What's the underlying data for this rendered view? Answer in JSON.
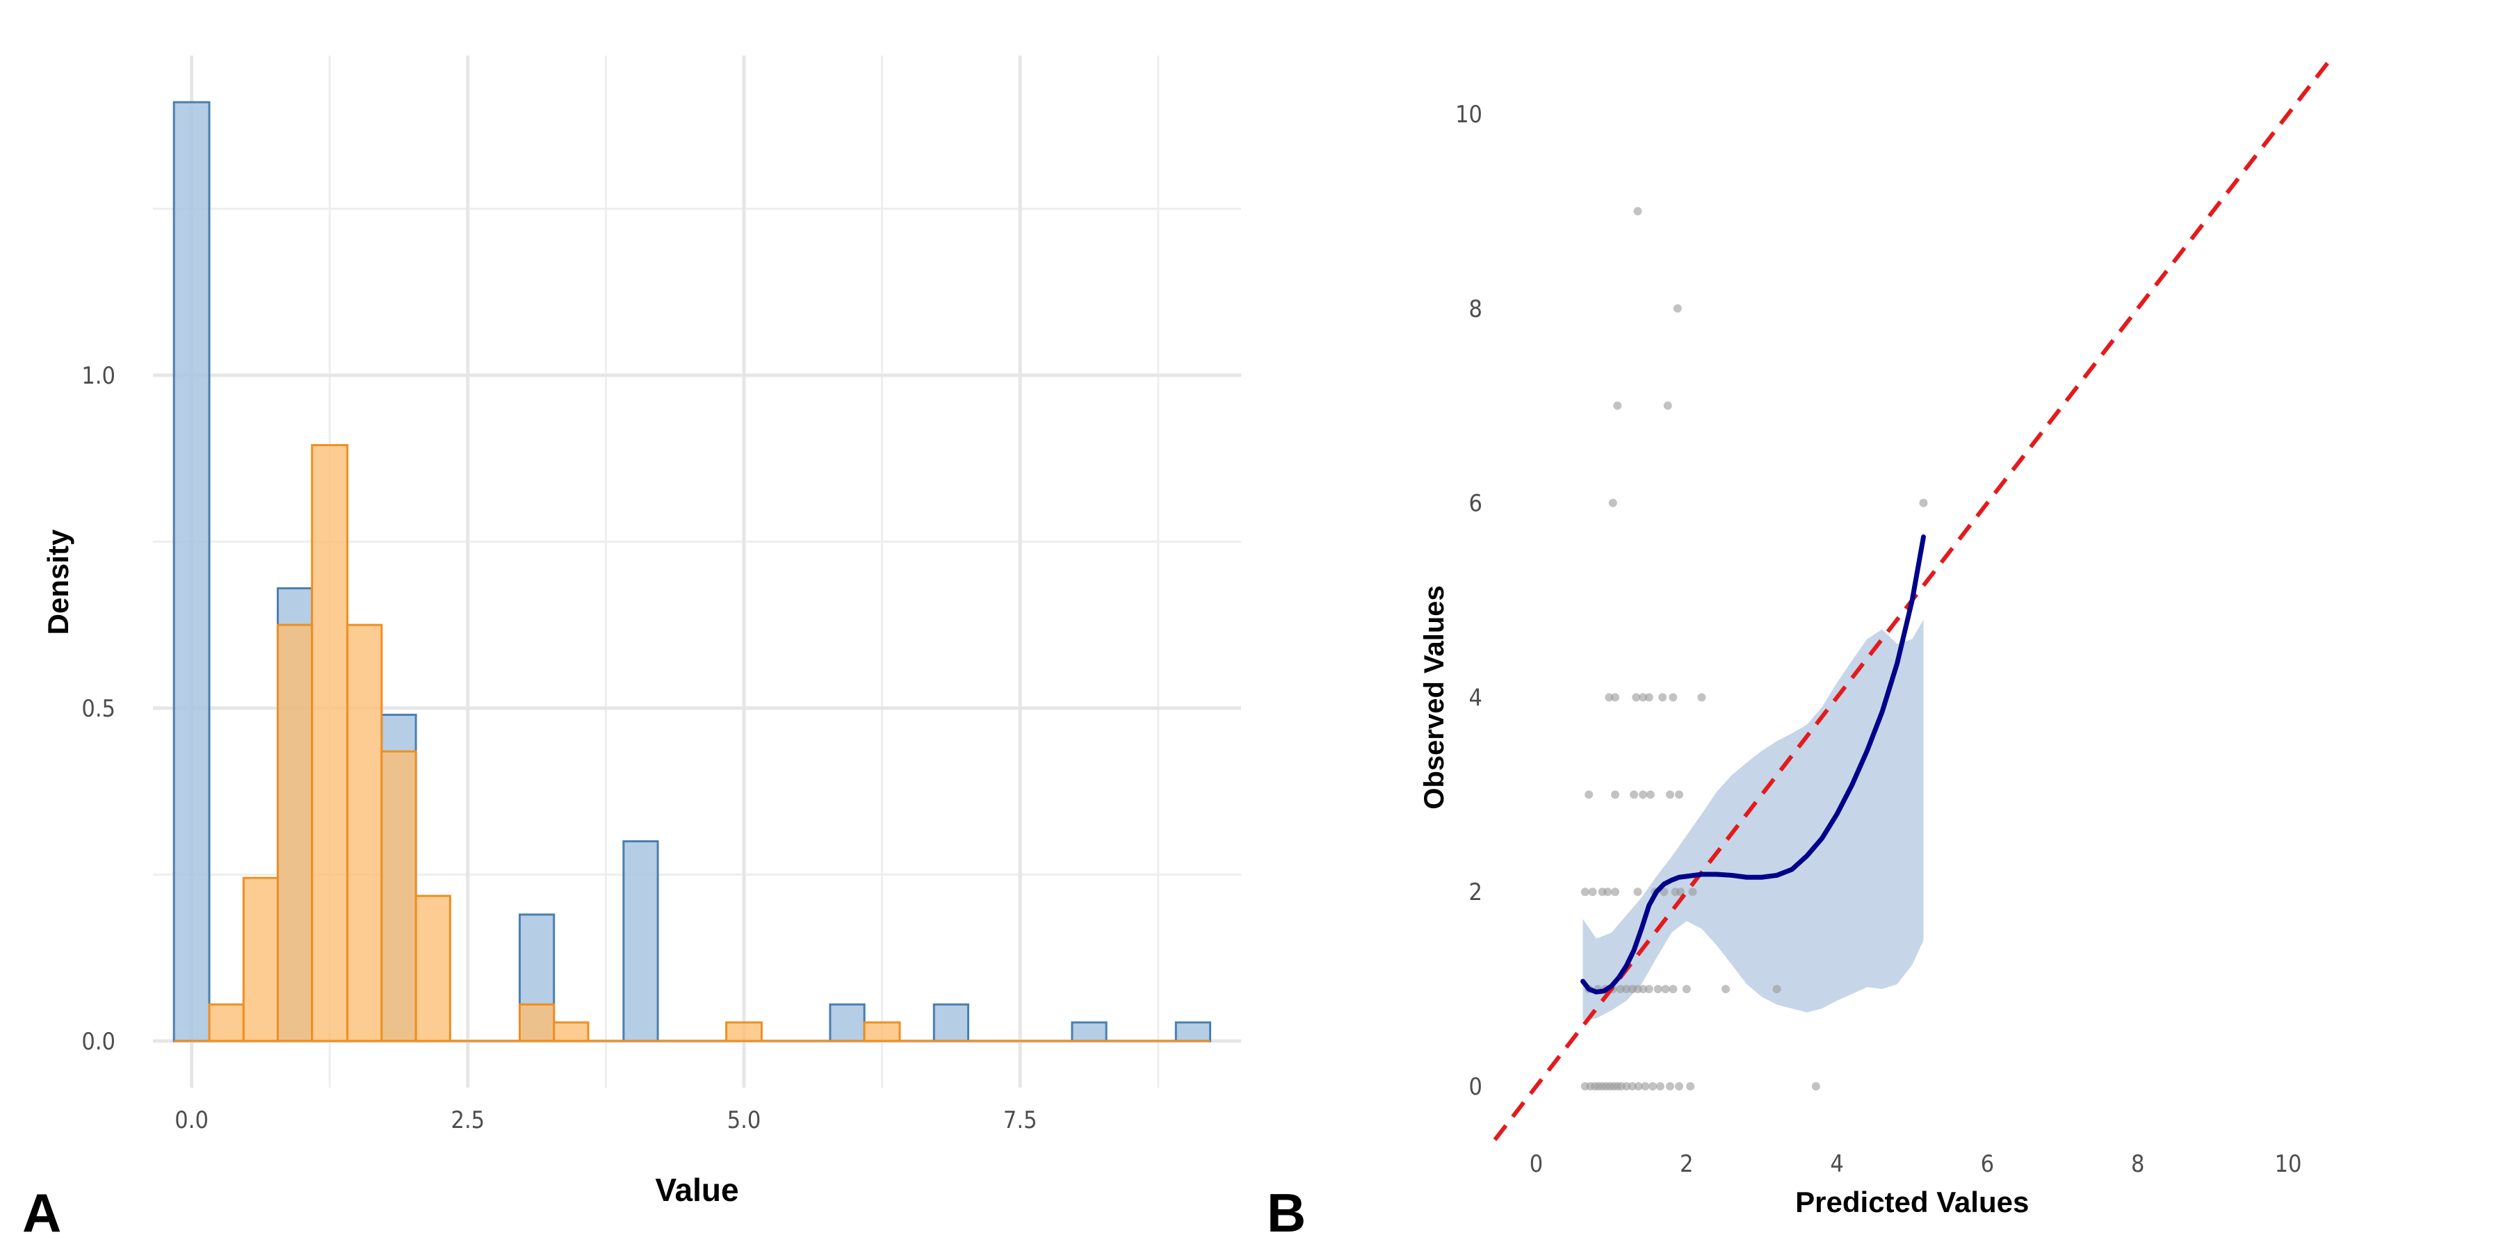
{
  "panels": {
    "a_tag": "A",
    "b_tag": "B"
  },
  "chart_data": [
    {
      "type": "histogram",
      "xlabel": "Value",
      "ylabel": "Density",
      "xlim": [
        -0.35,
        9.5
      ],
      "ylim": [
        -0.07,
        1.48
      ],
      "x_ticks": [
        0.0,
        2.5,
        5.0,
        7.5
      ],
      "x_tick_labels": [
        "0.0",
        "2.5",
        "5.0",
        "7.5"
      ],
      "y_ticks": [
        0.0,
        0.5,
        1.0
      ],
      "y_tick_labels": [
        "0.0",
        "0.5",
        "1.0"
      ],
      "grid": true,
      "legend": "none",
      "series": [
        {
          "color": "#a8c4e0",
          "edge": "#4a7fb0",
          "bins": [
            {
              "x0": -0.16,
              "x1": 0.16,
              "density": 1.41
            },
            {
              "x0": 0.78,
              "x1": 1.09,
              "density": 0.68
            },
            {
              "x0": 1.72,
              "x1": 2.03,
              "density": 0.49
            },
            {
              "x0": 2.97,
              "x1": 3.28,
              "density": 0.19
            },
            {
              "x0": 3.91,
              "x1": 4.22,
              "density": 0.3
            },
            {
              "x0": 5.78,
              "x1": 6.09,
              "density": 0.055
            },
            {
              "x0": 6.72,
              "x1": 7.03,
              "density": 0.055
            },
            {
              "x0": 7.97,
              "x1": 8.28,
              "density": 0.028
            },
            {
              "x0": 8.91,
              "x1": 9.22,
              "density": 0.028
            }
          ]
        },
        {
          "color": "#fdbe73",
          "edge": "#ef8f22",
          "bins": [
            {
              "x0": 0.16,
              "x1": 0.47,
              "density": 0.055
            },
            {
              "x0": 0.47,
              "x1": 0.78,
              "density": 0.245
            },
            {
              "x0": 0.78,
              "x1": 1.09,
              "density": 0.625
            },
            {
              "x0": 1.09,
              "x1": 1.41,
              "density": 0.895
            },
            {
              "x0": 1.41,
              "x1": 1.72,
              "density": 0.625
            },
            {
              "x0": 1.72,
              "x1": 2.03,
              "density": 0.435
            },
            {
              "x0": 2.03,
              "x1": 2.34,
              "density": 0.218
            },
            {
              "x0": 2.97,
              "x1": 3.28,
              "density": 0.055
            },
            {
              "x0": 3.28,
              "x1": 3.59,
              "density": 0.028
            },
            {
              "x0": 4.84,
              "x1": 5.16,
              "density": 0.028
            },
            {
              "x0": 6.09,
              "x1": 6.41,
              "density": 0.028
            }
          ]
        }
      ]
    },
    {
      "type": "scatter",
      "xlabel": "Predicted Values",
      "ylabel": "Observed Values",
      "xlim": [
        -0.55,
        11.1
      ],
      "ylim": [
        -0.55,
        10.6
      ],
      "x_ticks": [
        0,
        2,
        4,
        6,
        8,
        10
      ],
      "x_tick_labels": [
        "0",
        "2",
        "4",
        "6",
        "8",
        "10"
      ],
      "y_ticks": [
        0,
        2,
        4,
        6,
        8,
        10
      ],
      "y_tick_labels": [
        "0",
        "2",
        "4",
        "6",
        "8",
        "10"
      ],
      "grid": false,
      "legend": "none",
      "points": [
        [
          0.65,
          0
        ],
        [
          0.72,
          0
        ],
        [
          0.78,
          0
        ],
        [
          0.83,
          0
        ],
        [
          0.88,
          0
        ],
        [
          0.93,
          0
        ],
        [
          0.98,
          0
        ],
        [
          1.03,
          0
        ],
        [
          1.08,
          0
        ],
        [
          1.13,
          0
        ],
        [
          1.2,
          0
        ],
        [
          1.28,
          0
        ],
        [
          1.36,
          0
        ],
        [
          1.45,
          0
        ],
        [
          1.55,
          0
        ],
        [
          1.65,
          0
        ],
        [
          1.78,
          0
        ],
        [
          1.9,
          0
        ],
        [
          2.05,
          0
        ],
        [
          3.72,
          0
        ],
        [
          0.7,
          1
        ],
        [
          0.82,
          1
        ],
        [
          0.92,
          1
        ],
        [
          1.02,
          1
        ],
        [
          1.12,
          1
        ],
        [
          1.2,
          1
        ],
        [
          1.28,
          1
        ],
        [
          1.35,
          1
        ],
        [
          1.42,
          1
        ],
        [
          1.5,
          1
        ],
        [
          1.62,
          1
        ],
        [
          1.72,
          1
        ],
        [
          1.82,
          1
        ],
        [
          2.0,
          1
        ],
        [
          2.52,
          1
        ],
        [
          3.2,
          1
        ],
        [
          0.65,
          2
        ],
        [
          0.75,
          2
        ],
        [
          0.88,
          2
        ],
        [
          0.95,
          2
        ],
        [
          1.05,
          2
        ],
        [
          1.35,
          2
        ],
        [
          1.58,
          2
        ],
        [
          1.7,
          2
        ],
        [
          1.85,
          2
        ],
        [
          1.92,
          2
        ],
        [
          2.08,
          2
        ],
        [
          0.7,
          3
        ],
        [
          1.05,
          3
        ],
        [
          1.3,
          3
        ],
        [
          1.42,
          3
        ],
        [
          1.52,
          3
        ],
        [
          1.78,
          3
        ],
        [
          1.9,
          3
        ],
        [
          0.97,
          4
        ],
        [
          1.05,
          4
        ],
        [
          1.33,
          4
        ],
        [
          1.42,
          4
        ],
        [
          1.5,
          4
        ],
        [
          1.68,
          4
        ],
        [
          1.82,
          4
        ],
        [
          2.2,
          4
        ],
        [
          1.02,
          6
        ],
        [
          5.15,
          6
        ],
        [
          1.08,
          7
        ],
        [
          1.75,
          7
        ],
        [
          1.88,
          8
        ],
        [
          1.35,
          9
        ]
      ],
      "reference_line": {
        "x": [
          -0.55,
          10.6
        ],
        "y": [
          -0.55,
          10.6
        ],
        "color": "#e41a1c",
        "style": "dashed"
      },
      "smooth_curve": {
        "color": "#00008b",
        "x": [
          0.62,
          0.7,
          0.8,
          0.9,
          1.0,
          1.1,
          1.2,
          1.3,
          1.4,
          1.5,
          1.6,
          1.7,
          1.8,
          1.9,
          2.0,
          2.2,
          2.4,
          2.6,
          2.8,
          3.0,
          3.2,
          3.4,
          3.6,
          3.8,
          4.0,
          4.2,
          4.4,
          4.6,
          4.8,
          5.0,
          5.15
        ],
        "y": [
          1.08,
          1.0,
          0.97,
          0.98,
          1.03,
          1.12,
          1.24,
          1.4,
          1.62,
          1.86,
          2.0,
          2.08,
          2.12,
          2.15,
          2.16,
          2.18,
          2.18,
          2.17,
          2.15,
          2.15,
          2.17,
          2.23,
          2.37,
          2.55,
          2.8,
          3.1,
          3.45,
          3.85,
          4.35,
          5.0,
          5.65
        ]
      },
      "confidence_band": {
        "color": "#c6d6e8",
        "x": [
          0.62,
          0.8,
          1.0,
          1.2,
          1.4,
          1.6,
          1.8,
          2.0,
          2.2,
          2.4,
          2.6,
          2.8,
          3.0,
          3.2,
          3.4,
          3.6,
          3.8,
          4.0,
          4.2,
          4.4,
          4.6,
          4.8,
          5.0,
          5.15
        ],
        "upper": [
          1.72,
          1.52,
          1.58,
          1.76,
          1.94,
          2.16,
          2.36,
          2.58,
          2.8,
          3.03,
          3.2,
          3.33,
          3.45,
          3.55,
          3.63,
          3.72,
          3.9,
          4.15,
          4.38,
          4.6,
          4.7,
          4.55,
          4.6,
          4.8
        ],
        "lower": [
          0.68,
          0.7,
          0.78,
          0.88,
          1.05,
          1.32,
          1.58,
          1.7,
          1.62,
          1.45,
          1.25,
          1.05,
          0.92,
          0.84,
          0.8,
          0.76,
          0.8,
          0.88,
          0.95,
          1.02,
          1.0,
          1.05,
          1.25,
          1.5
        ]
      }
    }
  ]
}
